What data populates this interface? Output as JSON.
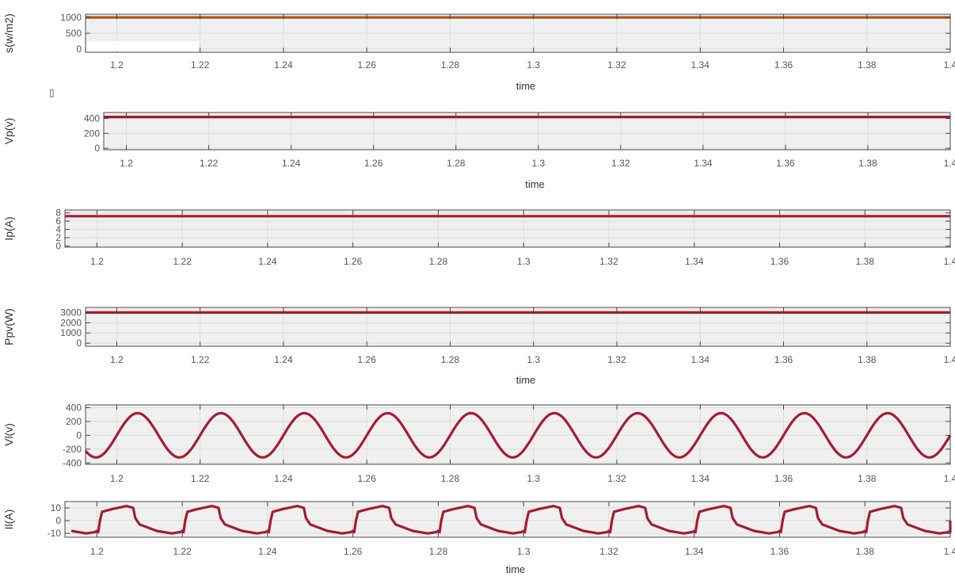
{
  "chart_data": [
    {
      "type": "line",
      "ylabel": "s(w/m2)",
      "xlabel": "time",
      "xlim": [
        1.1925,
        1.4
      ],
      "ylim": [
        -100,
        1100
      ],
      "yticks": [
        0,
        500,
        1000
      ],
      "xticks": [
        "1.2",
        "1.22",
        "1.24",
        "1.26",
        "1.28",
        "1.3",
        "1.32",
        "1.34",
        "1.36",
        "1.38",
        "1.4"
      ],
      "grid": true,
      "series": [
        {
          "kind": "constant",
          "value": 1000,
          "color": "#a9581c"
        }
      ]
    },
    {
      "type": "line",
      "ylabel": "Vp(v)",
      "xlabel": "time",
      "xlim": [
        1.1945,
        1.4
      ],
      "ylim": [
        -20,
        480
      ],
      "yticks": [
        0,
        200,
        400
      ],
      "xticks": [
        "1.2",
        "1.22",
        "1.24",
        "1.26",
        "1.28",
        "1.3",
        "1.32",
        "1.34",
        "1.36",
        "1.38",
        "1.4"
      ],
      "grid": true,
      "series": [
        {
          "kind": "constant",
          "value": 420,
          "color": "#a51c30"
        }
      ]
    },
    {
      "type": "line",
      "ylabel": "Ip(A)",
      "xlabel": "",
      "xlim": [
        1.1925,
        1.4
      ],
      "ylim": [
        -0.3,
        8.7
      ],
      "yticks": [
        0,
        2,
        4,
        6,
        8
      ],
      "xticks": [
        "1.2",
        "1.22",
        "1.24",
        "1.26",
        "1.28",
        "1.3",
        "1.32",
        "1.34",
        "1.36",
        "1.38",
        "1.4"
      ],
      "grid": true,
      "series": [
        {
          "kind": "constant",
          "value": 7.2,
          "color": "#a51c30"
        }
      ]
    },
    {
      "type": "line",
      "ylabel": "Ppv(W)",
      "xlabel": "time",
      "xlim": [
        1.1925,
        1.4
      ],
      "ylim": [
        -300,
        3500
      ],
      "yticks": [
        0,
        1000,
        2000,
        3000
      ],
      "xticks": [
        "1.2",
        "1.22",
        "1.24",
        "1.26",
        "1.28",
        "1.3",
        "1.32",
        "1.34",
        "1.36",
        "1.38",
        "1.4"
      ],
      "grid": true,
      "series": [
        {
          "kind": "constant",
          "value": 3000,
          "color": "#a51c30"
        }
      ]
    },
    {
      "type": "line",
      "ylabel": "Vl(v)",
      "xlabel": "",
      "xlim": [
        1.1925,
        1.4
      ],
      "ylim": [
        -420,
        440
      ],
      "yticks": [
        -400,
        -200,
        0,
        200,
        400
      ],
      "xticks": [
        "1.2",
        "1.22",
        "1.24",
        "1.26",
        "1.28",
        "1.3",
        "1.32",
        "1.34",
        "1.36",
        "1.38",
        "1.4"
      ],
      "grid": true,
      "series": [
        {
          "kind": "sine",
          "amplitude": 320,
          "frequency_hz": 50,
          "peak_at": 1.205,
          "color": "#a51c30"
        }
      ]
    },
    {
      "type": "line",
      "ylabel": "Il(A)",
      "xlabel": "time",
      "xlim": [
        1.1925,
        1.4
      ],
      "ylim": [
        -13,
        15
      ],
      "yticks": [
        -10,
        0,
        10
      ],
      "xticks": [
        "1.2",
        "1.22",
        "1.24",
        "1.26",
        "1.28",
        "1.3",
        "1.32",
        "1.34",
        "1.36",
        "1.38",
        "1.4"
      ],
      "grid": true,
      "series": [
        {
          "kind": "periodic",
          "period": 0.02,
          "phase_origin": 1.2,
          "color": "#a51c30",
          "waveform": [
            [
              0.0,
              -8
            ],
            [
              0.0003,
              -9
            ],
            [
              0.0007,
              0
            ],
            [
              0.0012,
              7
            ],
            [
              0.0035,
              9
            ],
            [
              0.007,
              11.5
            ],
            [
              0.0085,
              10
            ],
            [
              0.009,
              2
            ],
            [
              0.01,
              -3
            ],
            [
              0.014,
              -8
            ],
            [
              0.0175,
              -10
            ],
            [
              0.0195,
              -9
            ],
            [
              0.02,
              -8
            ]
          ]
        }
      ]
    }
  ],
  "marker_glyph": "▯"
}
